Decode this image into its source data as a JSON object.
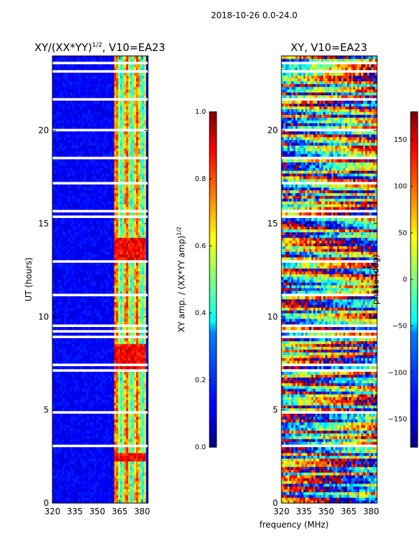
{
  "suptitle": "2018-10-26 0.0-24.0",
  "xlabel_shared": "frequency (MHz)",
  "chart_data": [
    {
      "type": "heatmap",
      "title_main": "XY/(XX*YY)",
      "title_sup": "1/2",
      "title_tail": ", V10=EA23",
      "ylabel": "UT (hours)",
      "xlim": [
        320,
        384
      ],
      "ylim": [
        0,
        24
      ],
      "x_ticks": [
        320,
        335,
        350,
        365,
        380
      ],
      "y_ticks": [
        0,
        5,
        10,
        15,
        20
      ],
      "description_values": "normalized XY amplitude, mostly low (~0.1) below 361 MHz, higher (0.4-0.9) at 361-382 MHz",
      "colorbar": {
        "label_main": "XY amp. / (XX*YY amp)",
        "label_sup": "1/2",
        "range": [
          0.0,
          1.0
        ],
        "ticks": [
          "0.0",
          "0.2",
          "0.4",
          "0.6",
          "0.8",
          "1.0"
        ],
        "tick_values": [
          0.0,
          0.2,
          0.4,
          0.6,
          0.8,
          1.0
        ],
        "colormap": "jet"
      }
    },
    {
      "type": "heatmap",
      "title": "XY, V10=EA23",
      "xlim": [
        320,
        384
      ],
      "ylim": [
        0,
        24
      ],
      "x_ticks": [
        320,
        335,
        350,
        365,
        380
      ],
      "y_ticks": [
        0,
        5,
        10,
        15,
        20
      ],
      "colorbar": {
        "label": "phase (deg)",
        "range": [
          -180,
          180
        ],
        "ticks": [
          "150",
          "100",
          "50",
          "0",
          "−50",
          "−100",
          "−150"
        ],
        "tick_values": [
          150,
          100,
          50,
          0,
          -50,
          -100,
          -150
        ],
        "colormap": "jet"
      }
    }
  ],
  "colors": {
    "gap": "#ffffff",
    "axis": "#000000"
  }
}
